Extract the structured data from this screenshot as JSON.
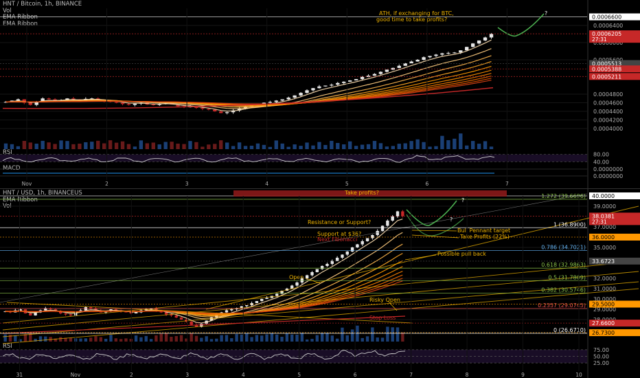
{
  "top_panel": {
    "legend": [
      "HNT / Bitcoin, 1h, BINANCE",
      "Vol",
      "EMA Ribbon",
      "EMA Ribbon"
    ],
    "sub_labels": [
      "RSI",
      "MACD"
    ]
  },
  "bottom_panel": {
    "legend": [
      "HNT / USD, 1h, BINANCEUS",
      "EMA Ribbon",
      "Vol"
    ],
    "sub_labels": [
      "RSI"
    ]
  },
  "theme": {
    "background": "#000000",
    "up_candle": "#e6e6e6",
    "down_candle": "#c62828",
    "label_red": "#c62828",
    "label_grey": "#444444",
    "label_white": "#ffffff",
    "label_orange": "#ff9800",
    "annotation_orange": "#f0b400",
    "fib_green": "#8bc34a",
    "fib_blue": "#64b5f6",
    "fib_red": "#ef5350",
    "path_green": "#4caf50",
    "ribbon_colors": [
      "#ffe0b2",
      "#ffcc80",
      "#ffb74d",
      "#ffa726",
      "#ff9800",
      "#fb8c00",
      "#f57c00",
      "#ef6c00",
      "#e65100",
      "#d84315"
    ]
  },
  "chart_data": [
    {
      "type": "candlestick",
      "title": "HNT / Bitcoin, 1h, BINANCE",
      "x_tick_labels": [
        "Nov",
        "2",
        "3",
        "4",
        "5",
        "6",
        "7"
      ],
      "ylim": [
        0.00036,
        0.00068
      ],
      "y_tick_labels": [
        "0.0006400",
        "0.0006000",
        "0.0005600",
        "0.0004800",
        "0.0004600",
        "0.0004400",
        "0.0004200",
        "0.0004000"
      ],
      "price_labels": [
        {
          "text": "0.0006600",
          "value": 0.00066,
          "color": "label_white"
        },
        {
          "text": "0.0006205",
          "sub": "27:31",
          "value": 0.0006205,
          "color": "label_red"
        },
        {
          "text": "0.0005513",
          "value": 0.0005513,
          "color": "label_grey"
        },
        {
          "text": "0.0005388",
          "value": 0.0005388,
          "color": "label_red"
        },
        {
          "text": "0.0005211",
          "value": 0.0005211,
          "color": "label_red"
        }
      ],
      "series_close": [
        0.000462,
        0.000465,
        0.000468,
        0.00046,
        0.000455,
        0.000463,
        0.00047,
        0.000468,
        0.000465,
        0.000466,
        0.00047,
        0.000468,
        0.000465,
        0.000469,
        0.00047,
        0.000467,
        0.000465,
        0.000462,
        0.00046,
        0.000457,
        0.000455,
        0.000458,
        0.00046,
        0.000456,
        0.000455,
        0.000457,
        0.000459,
        0.000456,
        0.000452,
        0.00045,
        0.000451,
        0.000448,
        0.000446,
        0.000444,
        0.00044,
        0.000436,
        0.000438,
        0.000442,
        0.000447,
        0.000451,
        0.000455,
        0.000457,
        0.00046,
        0.000462,
        0.000465,
        0.000468,
        0.000472,
        0.000477,
        0.000483,
        0.000489,
        0.000494,
        0.000498,
        0.0005,
        0.000502,
        0.000506,
        0.000509,
        0.000512,
        0.000515,
        0.00052,
        0.000523,
        0.000527,
        0.000532,
        0.000537,
        0.000541,
        0.000546,
        0.000552,
        0.000556,
        0.00056,
        0.000566,
        0.000569,
        0.000572,
        0.000575,
        0.000576,
        0.000577,
        0.000582,
        0.00059,
        0.000598,
        0.000605,
        0.000612,
        0.00062
      ],
      "annotations": [
        {
          "text": "ATH, if exchanging for BTC,",
          "color": "annotation_orange"
        },
        {
          "text": "good time to take profits?",
          "color": "annotation_orange"
        },
        {
          "text": "?",
          "color": "label_white"
        }
      ],
      "rsi_levels": [
        "80.00",
        "40.00"
      ],
      "macd_levels": [
        "0.0000000",
        "0.0000000"
      ]
    },
    {
      "type": "candlestick",
      "title": "HNT / USD, 1h, BINANCEUS",
      "x_tick_labels": [
        "31",
        "Nov",
        "2",
        "3",
        "4",
        "5",
        "6",
        "7",
        "8",
        "9",
        "10"
      ],
      "ylim": [
        26.0,
        40.0
      ],
      "y_tick_labels": [
        "39.0000",
        "37.0000",
        "35.0000",
        "32.0000",
        "31.0000",
        "30.0000",
        "29.0000",
        "28.0000"
      ],
      "price_labels": [
        {
          "text": "40.0000",
          "value": 40.0,
          "color": "label_white"
        },
        {
          "text": "38.0381",
          "sub": "27:31",
          "value": 38.0381,
          "color": "label_red"
        },
        {
          "text": "36.0000",
          "value": 36.0,
          "color": "label_orange"
        },
        {
          "text": "33.6723",
          "value": 33.6723,
          "color": "label_grey"
        },
        {
          "text": "29.5000",
          "value": 29.5,
          "color": "label_orange"
        },
        {
          "text": "27.6600",
          "value": 27.66,
          "color": "label_red"
        },
        {
          "text": "26.7300",
          "value": 26.73,
          "color": "label_orange"
        }
      ],
      "fib_levels": [
        {
          "text": "1.272 (39.6696)",
          "value": 39.6696,
          "color": "fib_green"
        },
        {
          "text": "1 (36.8900)",
          "value": 36.89,
          "color": "label_white"
        },
        {
          "text": "0.786 (34.7021)",
          "value": 34.7021,
          "color": "fib_blue"
        },
        {
          "text": "0.618 (32.9863)",
          "value": 32.9863,
          "color": "fib_green"
        },
        {
          "text": "0.5 (31.7809)",
          "value": 31.7809,
          "color": "fib_green"
        },
        {
          "text": "0.382 (30.5746)",
          "value": 30.5746,
          "color": "fib_green"
        },
        {
          "text": "0.2357 (29.0745)",
          "value": 29.0745,
          "color": "fib_red"
        },
        {
          "text": "0 (26.6710)",
          "value": 26.671,
          "color": "label_white"
        }
      ],
      "series_close": [
        28.8,
        28.7,
        28.9,
        29.0,
        28.6,
        28.4,
        28.7,
        28.9,
        29.1,
        29.0,
        28.8,
        28.6,
        28.5,
        28.4,
        28.7,
        28.9,
        29.2,
        29.1,
        28.9,
        28.7,
        28.8,
        29.0,
        28.9,
        28.8,
        28.7,
        28.6,
        28.7,
        28.9,
        29.0,
        29.1,
        28.9,
        28.7,
        28.5,
        28.4,
        28.2,
        28.0,
        27.8,
        27.5,
        27.3,
        27.6,
        27.9,
        28.2,
        28.5,
        28.7,
        28.9,
        29.0,
        29.1,
        29.3,
        29.4,
        29.6,
        29.8,
        30.0,
        30.1,
        30.3,
        30.5,
        30.8,
        31.0,
        31.3,
        31.6,
        32.0,
        32.3,
        32.6,
        32.9,
        33.2,
        33.4,
        33.7,
        34.0,
        34.3,
        34.6,
        35.0,
        35.3,
        35.6,
        35.9,
        36.2,
        36.6,
        37.1,
        37.6,
        38.0,
        38.5,
        38.04
      ],
      "annotations": [
        {
          "text": "Take profits?",
          "color": "annotation_orange"
        },
        {
          "text": "?",
          "color": "label_white"
        },
        {
          "text": "Resistance or Support?",
          "color": "annotation_orange"
        },
        {
          "text": "?",
          "color": "label_white"
        },
        {
          "text": "Bull Pennant target",
          "color": "annotation_orange"
        },
        {
          "text": "Support at $36?",
          "color": "annotation_orange"
        },
        {
          "text": "Next Fibonacci",
          "color": "label_red"
        },
        {
          "text": "Take Profits (22%)",
          "color": "annotation_orange"
        },
        {
          "text": "Possible pull back",
          "color": "annotation_orange"
        },
        {
          "text": "Open",
          "color": "annotation_orange"
        },
        {
          "text": "Risky Open",
          "color": "annotation_orange"
        },
        {
          "text": "Stop Loss",
          "color": "label_red"
        }
      ],
      "rsi_levels": [
        "75.00",
        "50.00",
        "25.00"
      ]
    }
  ]
}
